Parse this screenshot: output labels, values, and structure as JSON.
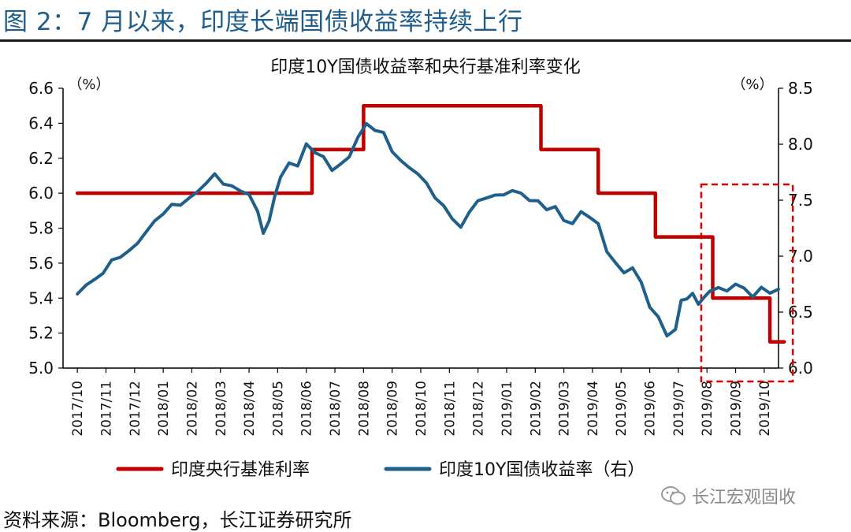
{
  "figure_title": "图 2：7 月以来，印度长端国债收益率持续上行",
  "source_note": "资料来源：Bloomberg，长江证券研究所",
  "watermark": "长江宏观固收",
  "chart_data": {
    "type": "line",
    "title": "印度10Y国债收益率和央行基准利率变化",
    "left_unit": "（%）",
    "right_unit": "（%）",
    "x_categories": [
      "2017/10",
      "2017/11",
      "2017/12",
      "2018/01",
      "2018/02",
      "2018/03",
      "2018/04",
      "2018/05",
      "2018/06",
      "2018/07",
      "2018/08",
      "2018/09",
      "2018/10",
      "2018/11",
      "2018/12",
      "2019/01",
      "2019/02",
      "2019/03",
      "2019/04",
      "2019/05",
      "2019/06",
      "2019/07",
      "2019/08",
      "2019/09",
      "2019/10"
    ],
    "left_axis": {
      "min": 5.0,
      "max": 6.6,
      "ticks": [
        "5.0",
        "5.2",
        "5.4",
        "5.6",
        "5.8",
        "6.0",
        "6.2",
        "6.4",
        "6.6"
      ]
    },
    "right_axis": {
      "min": 6.0,
      "max": 8.5,
      "ticks": [
        "6.0",
        "6.5",
        "7.0",
        "7.5",
        "8.0",
        "8.5"
      ]
    },
    "series": [
      {
        "name": "印度央行基准利率",
        "axis": "left",
        "color": "#c00000",
        "step": true,
        "points": [
          {
            "x": 0.0,
            "y": 6.0
          },
          {
            "x": 8.2,
            "y": 6.0
          },
          {
            "x": 8.2,
            "y": 6.25
          },
          {
            "x": 10.0,
            "y": 6.25
          },
          {
            "x": 10.0,
            "y": 6.5
          },
          {
            "x": 16.2,
            "y": 6.5
          },
          {
            "x": 16.2,
            "y": 6.25
          },
          {
            "x": 18.2,
            "y": 6.25
          },
          {
            "x": 18.2,
            "y": 6.0
          },
          {
            "x": 20.2,
            "y": 6.0
          },
          {
            "x": 20.2,
            "y": 5.75
          },
          {
            "x": 22.2,
            "y": 5.75
          },
          {
            "x": 22.2,
            "y": 5.4
          },
          {
            "x": 24.2,
            "y": 5.4
          },
          {
            "x": 24.2,
            "y": 5.15
          },
          {
            "x": 24.7,
            "y": 5.15
          }
        ]
      },
      {
        "name": "印度10Y国债收益率（右）",
        "axis": "right",
        "color": "#1f5f8b",
        "x": [
          0.0,
          0.3,
          0.6,
          0.9,
          1.2,
          1.5,
          1.8,
          2.1,
          2.4,
          2.7,
          3.0,
          3.3,
          3.6,
          3.9,
          4.2,
          4.5,
          4.8,
          5.1,
          5.4,
          5.7,
          6.0,
          6.3,
          6.5,
          6.7,
          6.9,
          7.1,
          7.4,
          7.7,
          8.0,
          8.3,
          8.6,
          8.9,
          9.2,
          9.5,
          9.8,
          10.1,
          10.4,
          10.7,
          11.0,
          11.3,
          11.6,
          11.9,
          12.2,
          12.5,
          12.8,
          13.1,
          13.4,
          13.7,
          14.0,
          14.3,
          14.6,
          14.9,
          15.2,
          15.5,
          15.8,
          16.1,
          16.4,
          16.7,
          17.0,
          17.3,
          17.6,
          17.9,
          18.2,
          18.5,
          18.8,
          19.1,
          19.4,
          19.7,
          20.0,
          20.3,
          20.6,
          20.9,
          21.1,
          21.3,
          21.5,
          21.7,
          21.9,
          22.1,
          22.4,
          22.7,
          23.0,
          23.3,
          23.6,
          23.9,
          24.2,
          24.5
        ],
        "y": [
          6.67,
          6.75,
          6.78,
          6.85,
          6.95,
          7.0,
          7.05,
          7.12,
          7.22,
          7.3,
          7.38,
          7.45,
          7.47,
          7.52,
          7.58,
          7.65,
          7.72,
          7.65,
          7.62,
          7.6,
          7.55,
          7.4,
          7.2,
          7.3,
          7.55,
          7.7,
          7.85,
          7.8,
          8.0,
          7.92,
          7.88,
          7.78,
          7.82,
          7.9,
          8.05,
          8.18,
          8.12,
          8.1,
          7.95,
          7.85,
          7.8,
          7.72,
          7.65,
          7.52,
          7.45,
          7.35,
          7.25,
          7.4,
          7.48,
          7.52,
          7.55,
          7.55,
          7.6,
          7.55,
          7.5,
          7.48,
          7.42,
          7.45,
          7.32,
          7.3,
          7.38,
          7.35,
          7.28,
          7.05,
          6.95,
          6.85,
          6.9,
          6.75,
          6.55,
          6.45,
          6.3,
          6.35,
          6.6,
          6.62,
          6.65,
          6.58,
          6.63,
          6.7,
          6.72,
          6.68,
          6.75,
          6.7,
          6.65,
          6.72,
          6.68,
          6.7
        ]
      }
    ],
    "highlight_box": {
      "x_start": 21.8,
      "x_end": 25.0,
      "y_low": 5.0,
      "y_high": 6.05,
      "color": "#e00000"
    },
    "legend": {
      "position": "bottom"
    }
  }
}
